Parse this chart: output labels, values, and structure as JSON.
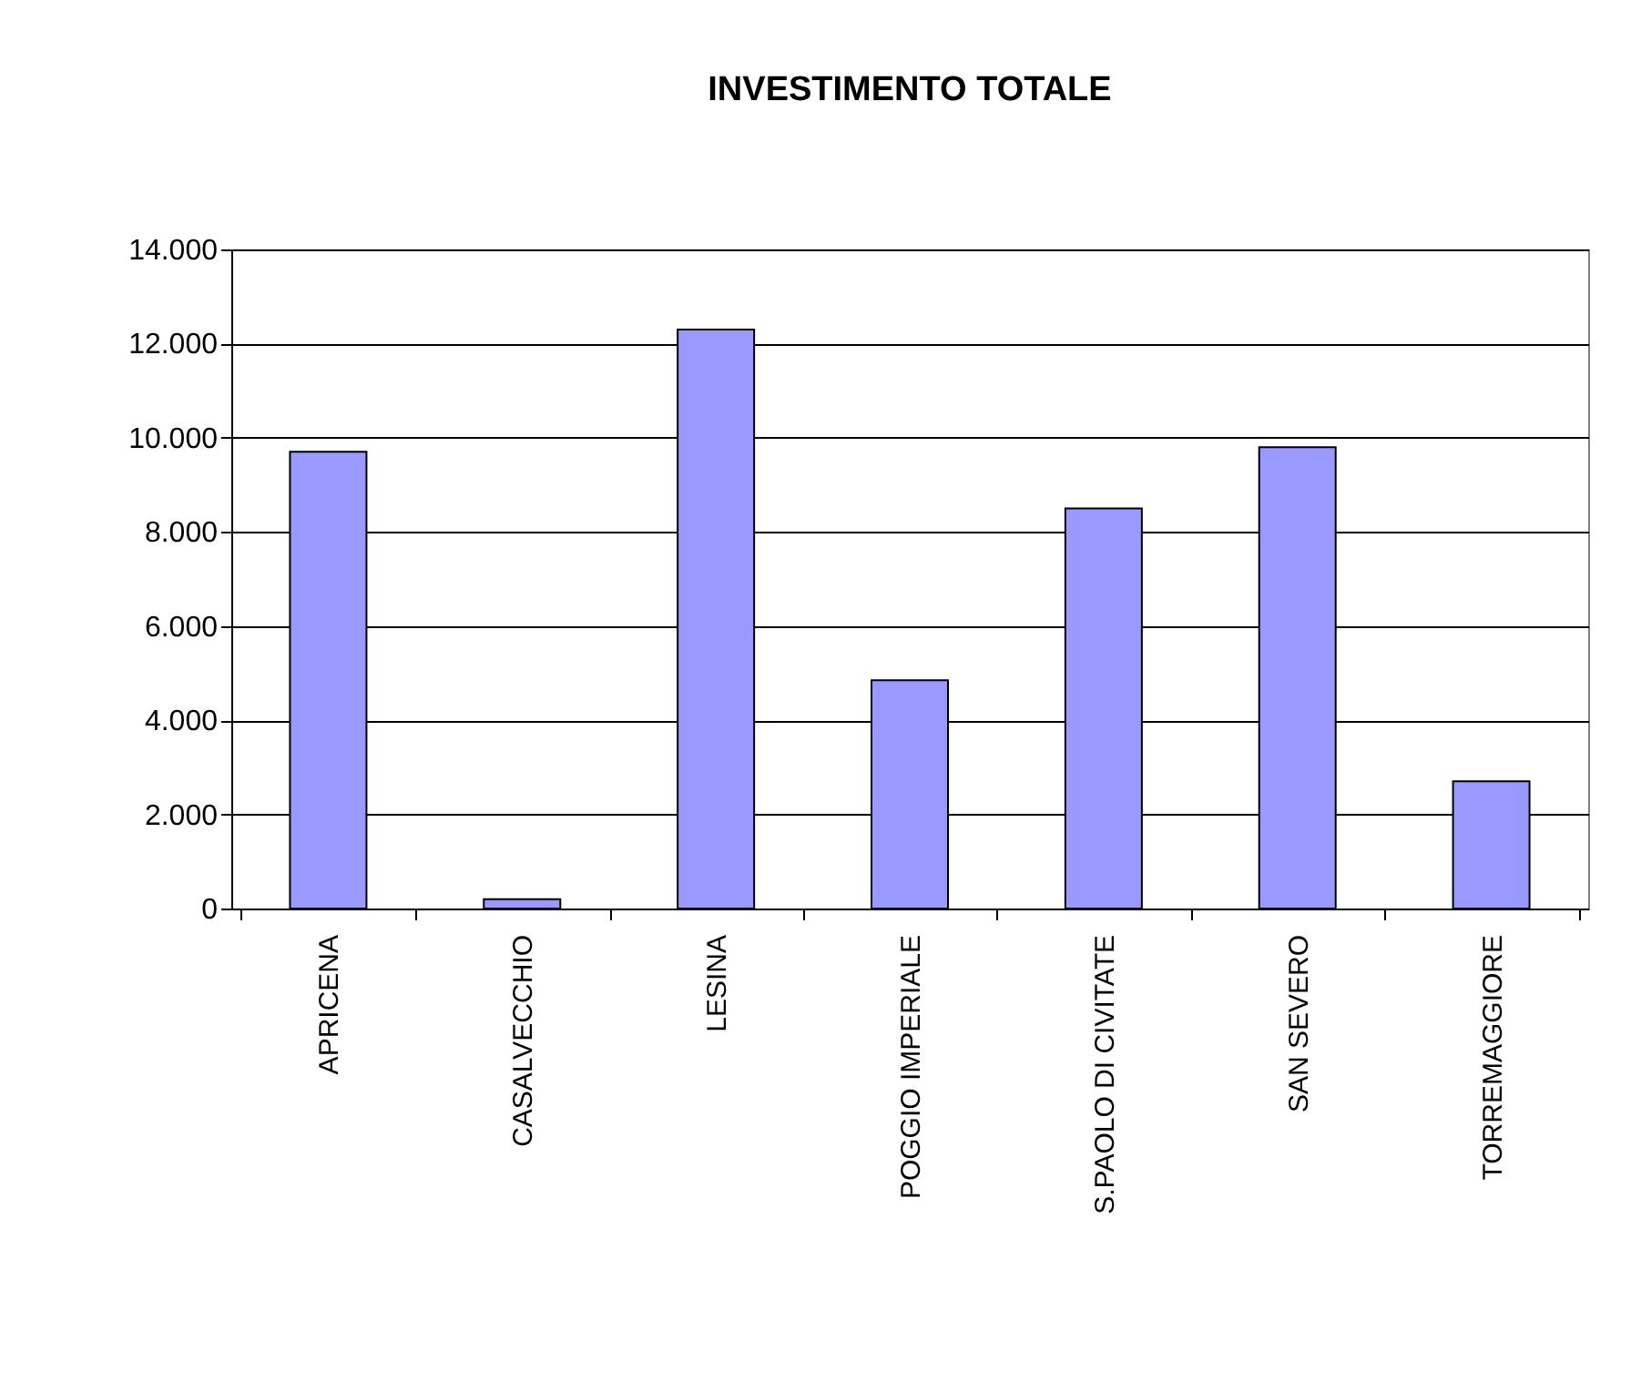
{
  "chart_data": {
    "type": "bar",
    "title": "INVESTIMENTO TOTALE",
    "categories": [
      "APRICENA",
      "CASALVECCHIO",
      "LESINA",
      "POGGIO IMPERIALE",
      "S.PAOLO DI CIVITATE",
      "SAN SEVERO",
      "TORREMAGGIORE"
    ],
    "values": [
      9700,
      200,
      12300,
      4850,
      8500,
      9800,
      2700
    ],
    "color": "#9999ff",
    "ylim": [
      0,
      14000
    ],
    "yticks": [
      {
        "value": 0,
        "label": "0"
      },
      {
        "value": 2000,
        "label": "2.000"
      },
      {
        "value": 4000,
        "label": "4.000"
      },
      {
        "value": 6000,
        "label": "6.000"
      },
      {
        "value": 8000,
        "label": "8.000"
      },
      {
        "value": 10000,
        "label": "10.000"
      },
      {
        "value": 12000,
        "label": "12.000"
      },
      {
        "value": 14000,
        "label": "14.000"
      }
    ],
    "grid": "y"
  }
}
